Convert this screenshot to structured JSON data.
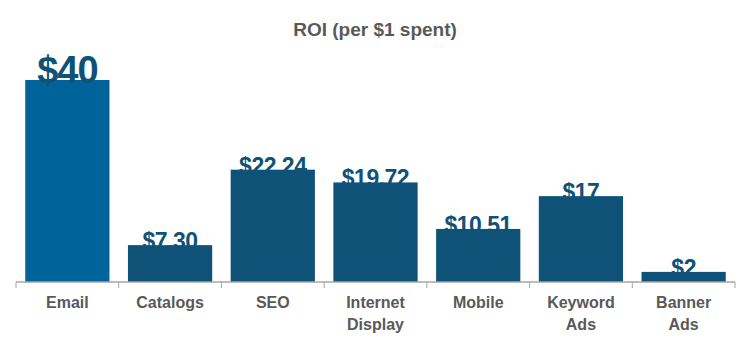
{
  "chart_data": {
    "type": "bar",
    "title": "ROI (per $1 spent)",
    "categories": [
      "Email",
      "Catalogs",
      "SEO",
      "Internet Display",
      "Mobile",
      "Keyword Ads",
      "Banner Ads"
    ],
    "values": [
      40,
      7.3,
      22.24,
      19.72,
      10.51,
      17,
      2
    ],
    "value_labels": [
      "$40",
      "$7.30",
      "$22.24",
      "$19.72",
      "$10.51",
      "$17",
      "$2"
    ],
    "colors": [
      "#00649a",
      "#0f5278",
      "#0f5278",
      "#0f5278",
      "#0f5278",
      "#0f5278",
      "#0f5278"
    ],
    "ylim": [
      0,
      40
    ],
    "data_labels": true,
    "tick_labels": "x",
    "grid": false
  }
}
